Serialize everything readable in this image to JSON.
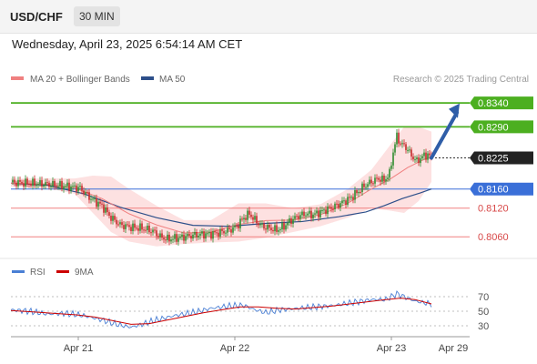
{
  "header": {
    "symbol": "USD/CHF",
    "timeframe": "30 MIN",
    "datetime": "Wednesday, April 23, 2025 6:54:14 AM CET"
  },
  "legend": {
    "ma20_label": "MA 20 + Bollinger Bands",
    "ma50_label": "MA 50",
    "rsi_label": "RSI",
    "ma9_label": "9MA",
    "credit": "Research © 2025 Trading Central"
  },
  "colors": {
    "ma20": "#f08080",
    "ma50": "#2d4f8a",
    "bollinger_fill": "#fddcdc",
    "up_candle": "#2e8b2e",
    "down_candle": "#c62828",
    "resistance": "#4caf20",
    "pivot": "#3a6fd8",
    "support": "#f08080",
    "current": "#222222",
    "arrow": "#2f5ea8",
    "rsi": "#4a7fd4",
    "rsi_ma": "#cc0000"
  },
  "chart_data": [
    {
      "type": "candlestick",
      "title": "USD/CHF 30 MIN",
      "y_range": [
        0.803,
        0.8365
      ],
      "x_ticks": [
        "Apr 21",
        "Apr 22",
        "Apr 23",
        "Apr 29"
      ],
      "levels": [
        {
          "value": 0.834,
          "label": "0.8340",
          "kind": "resistance"
        },
        {
          "value": 0.829,
          "label": "0.8290",
          "kind": "resistance"
        },
        {
          "value": 0.8225,
          "label": "0.8225",
          "kind": "current"
        },
        {
          "value": 0.816,
          "label": "0.8160",
          "kind": "pivot"
        },
        {
          "value": 0.812,
          "label": "0.8120",
          "kind": "support"
        },
        {
          "value": 0.806,
          "label": "0.8060",
          "kind": "support"
        }
      ],
      "close_path": [
        [
          0,
          0.8174
        ],
        [
          10,
          0.8172
        ],
        [
          20,
          0.817
        ],
        [
          30,
          0.8166
        ],
        [
          38,
          0.8162
        ],
        [
          44,
          0.814
        ],
        [
          50,
          0.8125
        ],
        [
          55,
          0.81
        ],
        [
          60,
          0.8085
        ],
        [
          66,
          0.808
        ],
        [
          72,
          0.8078
        ],
        [
          78,
          0.8072
        ],
        [
          82,
          0.806
        ],
        [
          86,
          0.8055
        ],
        [
          92,
          0.8058
        ],
        [
          98,
          0.8062
        ],
        [
          104,
          0.8065
        ],
        [
          110,
          0.8066
        ],
        [
          116,
          0.807
        ],
        [
          120,
          0.8074
        ],
        [
          124,
          0.8082
        ],
        [
          128,
          0.81
        ],
        [
          131,
          0.8108
        ],
        [
          134,
          0.8095
        ],
        [
          138,
          0.8082
        ],
        [
          142,
          0.8078
        ],
        [
          146,
          0.8074
        ],
        [
          150,
          0.8082
        ],
        [
          154,
          0.8095
        ],
        [
          158,
          0.8104
        ],
        [
          162,
          0.8108
        ],
        [
          166,
          0.8106
        ],
        [
          170,
          0.8112
        ],
        [
          174,
          0.8118
        ],
        [
          178,
          0.8124
        ],
        [
          182,
          0.8132
        ],
        [
          186,
          0.814
        ],
        [
          190,
          0.8152
        ],
        [
          194,
          0.8166
        ],
        [
          198,
          0.8175
        ],
        [
          202,
          0.8182
        ],
        [
          205,
          0.8178
        ],
        [
          208,
          0.8192
        ],
        [
          210,
          0.8238
        ],
        [
          212,
          0.827
        ],
        [
          214,
          0.8255
        ],
        [
          217,
          0.8248
        ],
        [
          220,
          0.823
        ],
        [
          223,
          0.8218
        ],
        [
          226,
          0.8228
        ],
        [
          229,
          0.8232
        ],
        [
          231,
          0.8225
        ]
      ],
      "ma50_path": [
        [
          0,
          0.8172
        ],
        [
          20,
          0.8168
        ],
        [
          40,
          0.815
        ],
        [
          60,
          0.8122
        ],
        [
          80,
          0.81
        ],
        [
          100,
          0.8084
        ],
        [
          120,
          0.8082
        ],
        [
          140,
          0.8088
        ],
        [
          160,
          0.8092
        ],
        [
          180,
          0.8102
        ],
        [
          195,
          0.8112
        ],
        [
          205,
          0.8125
        ],
        [
          215,
          0.814
        ],
        [
          225,
          0.8152
        ],
        [
          231,
          0.816
        ]
      ],
      "ma20_path": [
        [
          0,
          0.8172
        ],
        [
          20,
          0.817
        ],
        [
          35,
          0.8162
        ],
        [
          50,
          0.814
        ],
        [
          65,
          0.8108
        ],
        [
          80,
          0.8085
        ],
        [
          95,
          0.8068
        ],
        [
          110,
          0.807
        ],
        [
          125,
          0.8086
        ],
        [
          140,
          0.8094
        ],
        [
          155,
          0.8095
        ],
        [
          170,
          0.8106
        ],
        [
          185,
          0.813
        ],
        [
          198,
          0.816
        ],
        [
          208,
          0.818
        ],
        [
          218,
          0.8205
        ],
        [
          226,
          0.822
        ],
        [
          231,
          0.8228
        ]
      ],
      "bollinger_upper": [
        [
          0,
          0.8182
        ],
        [
          20,
          0.8182
        ],
        [
          35,
          0.8182
        ],
        [
          45,
          0.8188
        ],
        [
          55,
          0.8186
        ],
        [
          65,
          0.816
        ],
        [
          80,
          0.8125
        ],
        [
          95,
          0.8095
        ],
        [
          110,
          0.8095
        ],
        [
          125,
          0.813
        ],
        [
          140,
          0.813
        ],
        [
          155,
          0.812
        ],
        [
          170,
          0.8128
        ],
        [
          185,
          0.816
        ],
        [
          198,
          0.82
        ],
        [
          208,
          0.825
        ],
        [
          216,
          0.829
        ],
        [
          224,
          0.829
        ],
        [
          231,
          0.828
        ]
      ],
      "bollinger_lower": [
        [
          0,
          0.8165
        ],
        [
          20,
          0.8162
        ],
        [
          35,
          0.815
        ],
        [
          45,
          0.811
        ],
        [
          55,
          0.807
        ],
        [
          65,
          0.805
        ],
        [
          80,
          0.804
        ],
        [
          95,
          0.8045
        ],
        [
          110,
          0.8048
        ],
        [
          125,
          0.805
        ],
        [
          140,
          0.8058
        ],
        [
          155,
          0.807
        ],
        [
          170,
          0.8082
        ],
        [
          185,
          0.81
        ],
        [
          198,
          0.812
        ],
        [
          208,
          0.8115
        ],
        [
          216,
          0.811
        ],
        [
          224,
          0.8135
        ],
        [
          231,
          0.8175
        ]
      ],
      "projection": {
        "from": [
          231,
          0.8225
        ],
        "to": [
          246,
          0.8335
        ]
      }
    },
    {
      "type": "line",
      "title": "RSI",
      "y_ticks": [
        70,
        50,
        30
      ],
      "series": [
        {
          "name": "RSI",
          "values": [
            [
              0,
              52
            ],
            [
              10,
              50
            ],
            [
              20,
              46
            ],
            [
              30,
              47
            ],
            [
              40,
              44
            ],
            [
              50,
              38
            ],
            [
              58,
              32
            ],
            [
              66,
              28
            ],
            [
              72,
              32
            ],
            [
              80,
              38
            ],
            [
              90,
              44
            ],
            [
              100,
              48
            ],
            [
              110,
              54
            ],
            [
              120,
              57
            ],
            [
              128,
              58
            ],
            [
              134,
              52
            ],
            [
              140,
              48
            ],
            [
              148,
              52
            ],
            [
              158,
              54
            ],
            [
              168,
              56
            ],
            [
              178,
              58
            ],
            [
              188,
              62
            ],
            [
              198,
              66
            ],
            [
              206,
              66
            ],
            [
              212,
              74
            ],
            [
              216,
              70
            ],
            [
              222,
              64
            ],
            [
              226,
              62
            ],
            [
              231,
              60
            ]
          ]
        },
        {
          "name": "9MA",
          "values": [
            [
              0,
              51
            ],
            [
              12,
              49
            ],
            [
              24,
              47
            ],
            [
              36,
              45
            ],
            [
              46,
              42
            ],
            [
              56,
              37
            ],
            [
              66,
              32
            ],
            [
              76,
              33
            ],
            [
              86,
              38
            ],
            [
              96,
              43
            ],
            [
              106,
              48
            ],
            [
              116,
              52
            ],
            [
              126,
              56
            ],
            [
              136,
              56
            ],
            [
              146,
              54
            ],
            [
              156,
              53
            ],
            [
              166,
              55
            ],
            [
              176,
              57
            ],
            [
              186,
              60
            ],
            [
              196,
              63
            ],
            [
              206,
              66
            ],
            [
              214,
              68
            ],
            [
              222,
              66
            ],
            [
              231,
              60
            ]
          ]
        }
      ]
    }
  ]
}
